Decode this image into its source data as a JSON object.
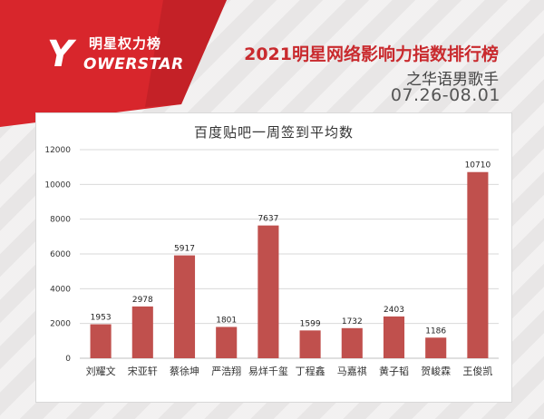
{
  "header": {
    "logo_cn": "明星权力榜",
    "logo_en": "OWERSTAR",
    "logo_mark": "Y",
    "title": "2021明星网络影响力指数排行榜",
    "subtitle": "之华语男歌手",
    "date_range": "07.26-08.01"
  },
  "colors": {
    "bar": "#c0504d",
    "title_red": "#c92a2e",
    "banner_red": "#d8262c"
  },
  "chart_data": {
    "type": "bar",
    "title": "百度贴吧一周签到平均数",
    "categories": [
      "刘耀文",
      "宋亚轩",
      "蔡徐坤",
      "严浩翔",
      "易烊千玺",
      "丁程鑫",
      "马嘉祺",
      "黄子韬",
      "贺峻霖",
      "王俊凯"
    ],
    "values": [
      1953,
      2978,
      5917,
      1801,
      7637,
      1599,
      1732,
      2403,
      1186,
      10710
    ],
    "ylim": [
      0,
      12000
    ],
    "yticks": [
      0,
      2000,
      4000,
      6000,
      8000,
      10000,
      12000
    ],
    "grid": true,
    "legend": "none"
  }
}
